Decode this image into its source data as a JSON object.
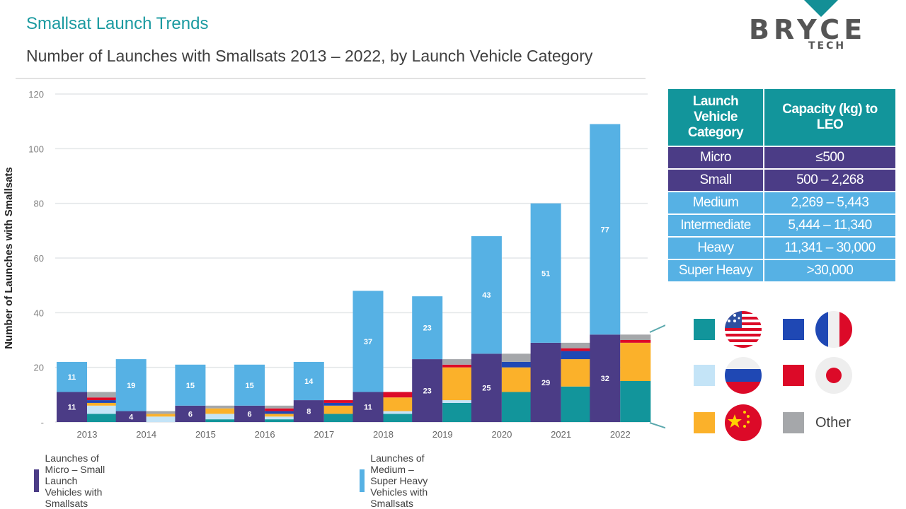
{
  "header": {
    "title": "Smallsat Launch Trends",
    "subtitle": "Number of Launches with Smallsats 2013 – 2022, by Launch Vehicle Category"
  },
  "logo": {
    "word": "BRYCE",
    "sub": "TECH"
  },
  "colors": {
    "micro_small": "#4b3c86",
    "medium_super_heavy": "#56b1e4",
    "US": "#12959b",
    "Russia": "#c4e4f7",
    "China": "#fbb12a",
    "France": "#1f48b4",
    "Japan": "#dc0a28",
    "Other": "#a5a7aa"
  },
  "chart_data": {
    "type": "bar",
    "title": "Number of Launches with Smallsats 2013 – 2022, by Launch Vehicle Category",
    "xlabel": "",
    "ylabel": "Number of Launches with Smallsats",
    "ylim": [
      0,
      120
    ],
    "yticks": [
      "-",
      "20",
      "40",
      "60",
      "80",
      "100",
      "120"
    ],
    "grid": true,
    "categories": [
      "2013",
      "2014",
      "2015",
      "2016",
      "2017",
      "2018",
      "2019",
      "2020",
      "2021",
      "2022"
    ],
    "series": [
      {
        "name": "Launches of Micro – Small Launch Vehicles with Smallsats",
        "stack": "vehicle",
        "color_key": "micro_small",
        "values": [
          11,
          4,
          6,
          6,
          8,
          11,
          23,
          25,
          29,
          32
        ]
      },
      {
        "name": "Launches of Medium – Super Heavy Vehicles with Smallsats",
        "stack": "vehicle",
        "color_key": "medium_super_heavy",
        "values": [
          11,
          19,
          15,
          15,
          14,
          37,
          23,
          43,
          51,
          77
        ]
      },
      {
        "name": "US",
        "stack": "country",
        "color_key": "US",
        "values": [
          3,
          0,
          1,
          1,
          3,
          3,
          7,
          11,
          13,
          15
        ]
      },
      {
        "name": "Russia",
        "stack": "country",
        "color_key": "Russia",
        "values": [
          3,
          2,
          2,
          1,
          0,
          1,
          1,
          0,
          0,
          0
        ]
      },
      {
        "name": "China",
        "stack": "country",
        "color_key": "China",
        "values": [
          1,
          1,
          2,
          1,
          3,
          5,
          12,
          9,
          10,
          14
        ]
      },
      {
        "name": "France",
        "stack": "country",
        "color_key": "France",
        "values": [
          1,
          0,
          0,
          1,
          1,
          0,
          0,
          2,
          3,
          0
        ]
      },
      {
        "name": "Japan",
        "stack": "country",
        "color_key": "Japan",
        "values": [
          1,
          0,
          0,
          1,
          1,
          2,
          1,
          0,
          1,
          1
        ]
      },
      {
        "name": "Other",
        "stack": "country",
        "color_key": "Other",
        "values": [
          2,
          1,
          1,
          1,
          0,
          0,
          2,
          3,
          2,
          2
        ]
      }
    ],
    "legend": "bottom",
    "country_legend": [
      "US",
      "France",
      "Russia",
      "Japan",
      "China",
      "Other"
    ]
  },
  "table": {
    "headers": [
      "Launch Vehicle Category",
      "Capacity (kg) to LEO"
    ],
    "header_lines": [
      [
        "Launch",
        "Vehicle",
        "Category"
      ],
      [
        "Capacity (kg) to",
        "LEO"
      ]
    ],
    "rows": [
      {
        "category": "Micro",
        "capacity": "≤500",
        "group": "sm"
      },
      {
        "category": "Small",
        "capacity": "500 – 2,268",
        "group": "sm"
      },
      {
        "category": "Medium",
        "capacity": "2,269 – 5,443",
        "group": "lg"
      },
      {
        "category": "Intermediate",
        "capacity": "5,444 – 11,340",
        "group": "lg"
      },
      {
        "category": "Heavy",
        "capacity": "11,341 – 30,000",
        "group": "lg"
      },
      {
        "category": "Super Heavy",
        "capacity": ">30,000",
        "group": "lg"
      }
    ]
  },
  "country_legend": {
    "other_label": "Other"
  },
  "bottom_legend": [
    "Launches of Micro – Small Launch Vehicles with Smallsats",
    "Launches of Medium – Super Heavy Vehicles with Smallsats"
  ]
}
